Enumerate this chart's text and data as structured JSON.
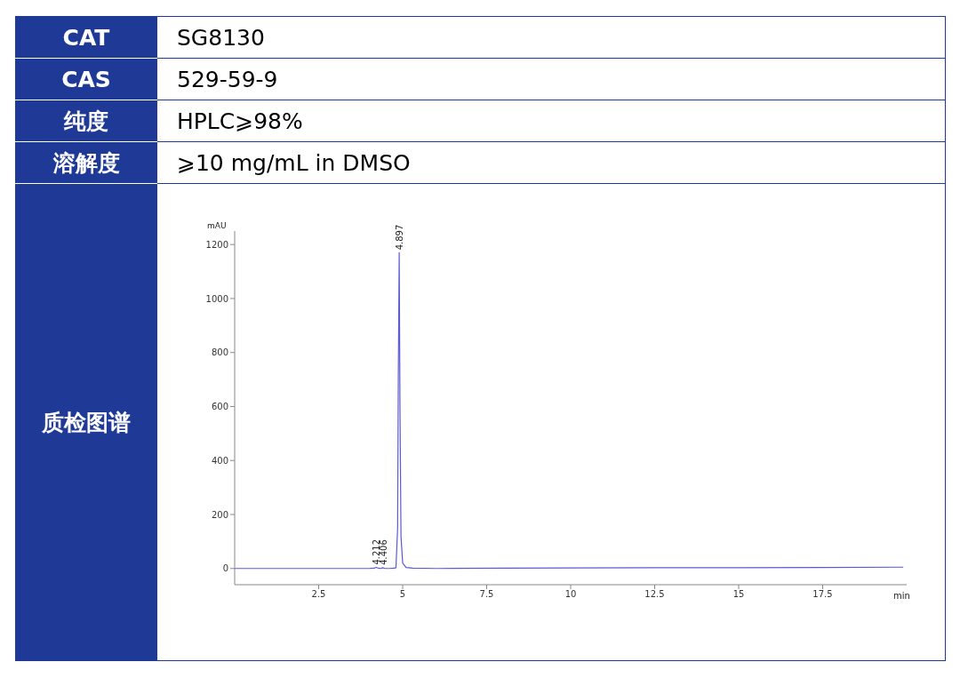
{
  "chart_data": {
    "type": "line",
    "xlabel": "min",
    "ylabel": "mAU",
    "x": [
      0,
      1,
      2,
      3,
      4,
      4.15,
      4.212,
      4.28,
      4.35,
      4.406,
      4.47,
      4.6,
      4.75,
      4.8,
      4.85,
      4.87,
      4.897,
      4.92,
      4.95,
      5.0,
      5.1,
      5.3,
      6,
      8,
      10,
      12.5,
      15,
      17.5,
      19.9
    ],
    "series": [
      {
        "color": "#5a5ad2",
        "values": [
          0,
          0,
          0,
          0,
          0,
          1,
          4,
          1,
          0,
          3,
          0,
          0,
          1,
          3,
          150,
          700,
          1170,
          600,
          120,
          20,
          4,
          1,
          0,
          1,
          2,
          3,
          3,
          4,
          5
        ]
      }
    ],
    "xlim": [
      0,
      20
    ],
    "xticks": [
      2.5,
      5,
      7.5,
      10,
      12.5,
      15,
      17.5
    ],
    "ylim": [
      -60,
      1250
    ],
    "yticks": [
      0,
      200,
      400,
      600,
      800,
      1000,
      1200
    ],
    "grid": false,
    "marker": "none",
    "line_style": "solid",
    "annotations": [
      "CAT",
      "SG8130",
      "CAS",
      "529-59-9",
      "纯度",
      "HPLC⩾98%",
      "溶解度",
      "⩾10 mg/mL in DMSO",
      "质检图谱",
      {
        "text": "4.897",
        "x": 4.897,
        "y": 1170
      },
      {
        "text": "4.212",
        "x": 4.212,
        "y": 4
      },
      {
        "text": "4.406",
        "x": 4.406,
        "y": 3
      }
    ]
  }
}
